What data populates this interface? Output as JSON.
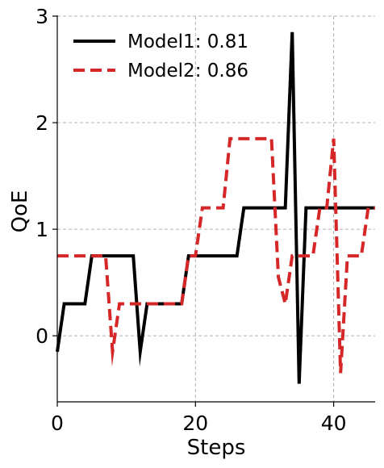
{
  "chart_data": {
    "type": "line",
    "title": "",
    "xlabel": "Steps",
    "ylabel": "QoE",
    "xlim": [
      0,
      46
    ],
    "ylim": [
      -0.62,
      3.0
    ],
    "xticks": [
      0,
      20,
      40
    ],
    "yticks": [
      0,
      1,
      2,
      3
    ],
    "grid": true,
    "legend_position": "top-left",
    "series": [
      {
        "name": "Model1: 0.81",
        "color": "#000000",
        "style": "solid",
        "x": [
          0,
          1,
          2,
          3,
          4,
          5,
          6,
          7,
          8,
          9,
          10,
          11,
          12,
          13,
          14,
          15,
          16,
          17,
          18,
          19,
          20,
          21,
          22,
          23,
          24,
          25,
          26,
          27,
          28,
          29,
          30,
          31,
          32,
          33,
          34,
          35,
          36,
          37,
          38,
          39,
          40,
          41,
          42,
          43,
          44,
          45,
          46
        ],
        "y": [
          -0.15,
          0.3,
          0.3,
          0.3,
          0.3,
          0.75,
          0.75,
          0.75,
          0.75,
          0.75,
          0.75,
          0.75,
          -0.15,
          0.3,
          0.3,
          0.3,
          0.3,
          0.3,
          0.3,
          0.75,
          0.75,
          0.75,
          0.75,
          0.75,
          0.75,
          0.75,
          0.75,
          1.2,
          1.2,
          1.2,
          1.2,
          1.2,
          1.2,
          1.2,
          2.85,
          -0.45,
          1.2,
          1.2,
          1.2,
          1.2,
          1.2,
          1.2,
          1.2,
          1.2,
          1.2,
          1.2,
          1.2
        ]
      },
      {
        "name": "Model2: 0.86",
        "color": "#d62728",
        "style": "dashed",
        "x": [
          0,
          1,
          2,
          3,
          4,
          5,
          6,
          7,
          8,
          9,
          10,
          11,
          12,
          13,
          14,
          15,
          16,
          17,
          18,
          19,
          20,
          21,
          22,
          23,
          24,
          25,
          26,
          27,
          28,
          29,
          30,
          31,
          32,
          33,
          34,
          35,
          36,
          37,
          38,
          39,
          40,
          41,
          42,
          43,
          44,
          45,
          46
        ],
        "y": [
          0.75,
          0.75,
          0.75,
          0.75,
          0.75,
          0.75,
          0.75,
          0.75,
          -0.15,
          0.3,
          0.3,
          0.3,
          0.3,
          0.3,
          0.3,
          0.3,
          0.3,
          0.3,
          0.3,
          0.75,
          0.75,
          1.2,
          1.2,
          1.2,
          1.2,
          1.85,
          1.85,
          1.85,
          1.85,
          1.85,
          1.85,
          1.85,
          0.55,
          0.3,
          0.75,
          0.75,
          0.75,
          0.75,
          1.2,
          1.2,
          1.85,
          -0.35,
          0.75,
          0.75,
          0.75,
          1.2,
          1.2
        ]
      }
    ]
  }
}
